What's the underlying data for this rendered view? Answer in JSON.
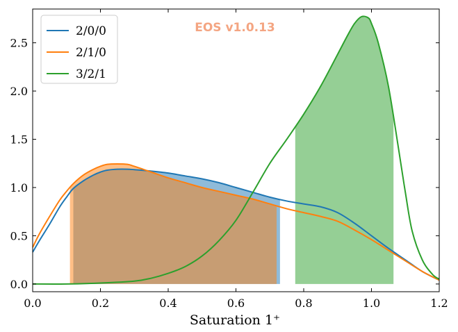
{
  "chart_data": {
    "type": "line",
    "xlabel": "Saturation 1⁺",
    "xlim": [
      0.0,
      1.2
    ],
    "ylim": [
      -0.08,
      2.85
    ],
    "x_ticks": [
      0.0,
      0.2,
      0.4,
      0.6,
      0.8,
      1.0,
      1.2
    ],
    "y_ticks": [
      0.0,
      0.5,
      1.0,
      1.5,
      2.0,
      2.5
    ],
    "x_tick_labels": [
      "0.0",
      "0.2",
      "0.4",
      "0.6",
      "0.8",
      "1.0",
      "1.2"
    ],
    "y_tick_labels": [
      "0.0",
      "0.5",
      "1.0",
      "1.5",
      "2.0",
      "2.5"
    ],
    "legend_position": "top-left",
    "grid": false,
    "annotation": {
      "text": "EOS v1.0.13",
      "color": "#f4a582"
    },
    "series": [
      {
        "name": "2/0/0",
        "color": "#1f77b4",
        "shade_range": [
          0.12,
          0.73
        ],
        "x": [
          0.0,
          0.02,
          0.05,
          0.08,
          0.1,
          0.12,
          0.15,
          0.18,
          0.2,
          0.22,
          0.25,
          0.28,
          0.3,
          0.35,
          0.4,
          0.45,
          0.5,
          0.55,
          0.6,
          0.65,
          0.7,
          0.75,
          0.8,
          0.85,
          0.9,
          0.95,
          1.0,
          1.05,
          1.1,
          1.15,
          1.2
        ],
        "y": [
          0.33,
          0.45,
          0.62,
          0.8,
          0.9,
          0.99,
          1.07,
          1.13,
          1.16,
          1.18,
          1.19,
          1.19,
          1.185,
          1.17,
          1.15,
          1.12,
          1.09,
          1.05,
          1.0,
          0.95,
          0.9,
          0.86,
          0.83,
          0.8,
          0.74,
          0.63,
          0.5,
          0.37,
          0.25,
          0.13,
          0.04
        ]
      },
      {
        "name": "2/1/0",
        "color": "#ff7f0e",
        "shade_range": [
          0.11,
          0.72
        ],
        "x": [
          0.0,
          0.02,
          0.05,
          0.08,
          0.1,
          0.12,
          0.15,
          0.18,
          0.2,
          0.22,
          0.25,
          0.28,
          0.3,
          0.35,
          0.4,
          0.45,
          0.5,
          0.55,
          0.6,
          0.65,
          0.7,
          0.75,
          0.8,
          0.85,
          0.9,
          0.95,
          1.0,
          1.05,
          1.1,
          1.15,
          1.2
        ],
        "y": [
          0.38,
          0.52,
          0.7,
          0.87,
          0.96,
          1.04,
          1.13,
          1.19,
          1.22,
          1.24,
          1.245,
          1.24,
          1.22,
          1.16,
          1.1,
          1.05,
          1.0,
          0.96,
          0.92,
          0.88,
          0.83,
          0.78,
          0.74,
          0.7,
          0.65,
          0.56,
          0.46,
          0.35,
          0.24,
          0.13,
          0.04
        ]
      },
      {
        "name": "3/2/1",
        "color": "#2ca02c",
        "shade_range": [
          0.775,
          1.065
        ],
        "x": [
          0.0,
          0.1,
          0.2,
          0.3,
          0.35,
          0.4,
          0.45,
          0.5,
          0.55,
          0.6,
          0.65,
          0.7,
          0.75,
          0.8,
          0.85,
          0.9,
          0.93,
          0.95,
          0.97,
          0.99,
          1.0,
          1.02,
          1.05,
          1.08,
          1.1,
          1.12,
          1.15,
          1.18,
          1.2
        ],
        "y": [
          0.0,
          0.0,
          0.01,
          0.03,
          0.06,
          0.11,
          0.18,
          0.29,
          0.45,
          0.66,
          0.95,
          1.25,
          1.5,
          1.76,
          2.05,
          2.38,
          2.58,
          2.7,
          2.77,
          2.76,
          2.7,
          2.5,
          2.05,
          1.4,
          0.95,
          0.55,
          0.25,
          0.1,
          0.05
        ]
      }
    ]
  }
}
